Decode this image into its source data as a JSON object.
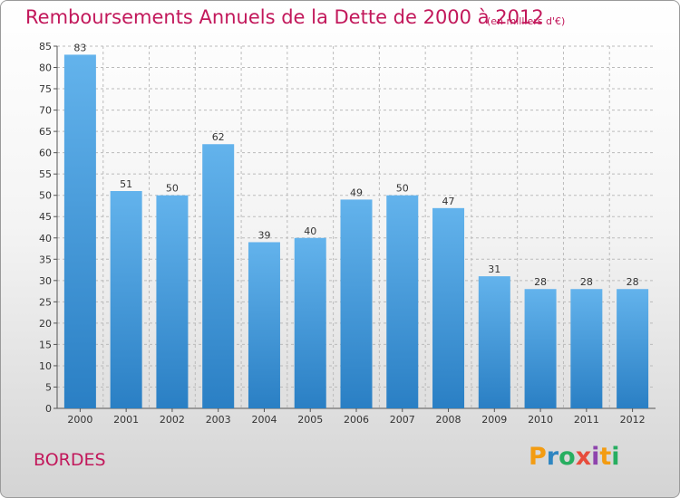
{
  "title": "Remboursements Annuels de la Dette de 2000 à 2012",
  "unit": "(en milliers d'€)",
  "commune": "BORDES",
  "logo": {
    "text": "Proxiti",
    "letters": [
      {
        "char": "P",
        "color": "#f39c12"
      },
      {
        "char": "r",
        "color": "#2e86c1"
      },
      {
        "char": "o",
        "color": "#27ae60"
      },
      {
        "char": "x",
        "color": "#e74c3c"
      },
      {
        "char": "i",
        "color": "#8e44ad"
      },
      {
        "char": "t",
        "color": "#f39c12"
      },
      {
        "char": "i",
        "color": "#27ae60"
      }
    ]
  },
  "colors": {
    "bar_top": "#63b3ec",
    "bar_bottom": "#2a7fc4",
    "accent": "#c2185b",
    "grid": "#bbbbbb"
  },
  "chart_data": {
    "type": "bar",
    "categories": [
      "2000",
      "2001",
      "2002",
      "2003",
      "2004",
      "2005",
      "2006",
      "2007",
      "2008",
      "2009",
      "2010",
      "2011",
      "2012"
    ],
    "values": [
      83,
      51,
      50,
      62,
      39,
      40,
      49,
      50,
      47,
      31,
      28,
      28,
      28
    ],
    "ylim": [
      0,
      85
    ],
    "ytick_step": 5,
    "grid": true,
    "data_labels": true
  }
}
